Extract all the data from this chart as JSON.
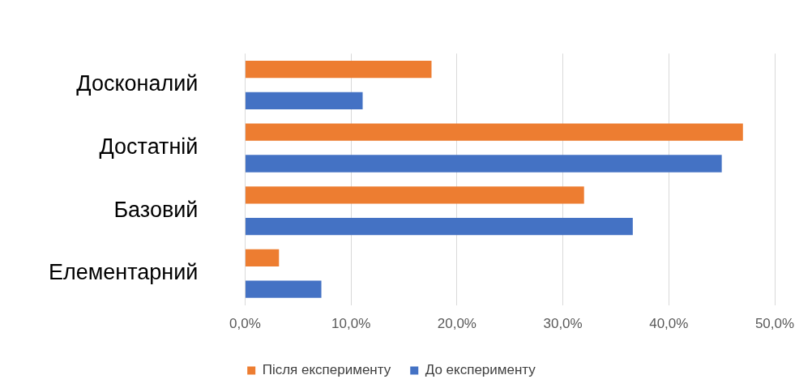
{
  "chart_data": {
    "type": "bar",
    "orientation": "horizontal",
    "categories": [
      "Досконалий",
      "Достатній",
      "Базовий",
      "Елементарний"
    ],
    "series": [
      {
        "name": "Після експерименту",
        "color": "#ed7d31",
        "values": [
          17.6,
          47.0,
          32.0,
          3.2
        ]
      },
      {
        "name": "До експерименту",
        "color": "#4472c4",
        "values": [
          11.1,
          45.0,
          36.6,
          7.2
        ]
      }
    ],
    "xlim": [
      0,
      50
    ],
    "xticks": [
      {
        "value": 0,
        "label": "0,0%"
      },
      {
        "value": 10,
        "label": "10,0%"
      },
      {
        "value": 20,
        "label": "20,0%"
      },
      {
        "value": 30,
        "label": "30,0%"
      },
      {
        "value": 40,
        "label": "40,0%"
      },
      {
        "value": 50,
        "label": "50,0%"
      }
    ],
    "grid": "x",
    "legend": "bottom"
  }
}
